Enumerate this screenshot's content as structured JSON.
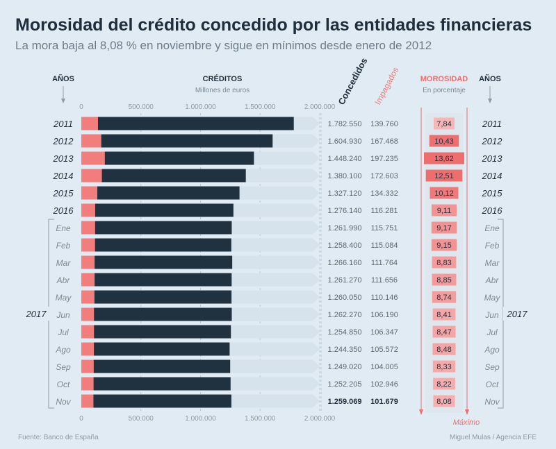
{
  "title": "Morosidad del crédito concedido por las entidades financieras",
  "subtitle": "La mora baja al 8,08 % en noviembre y sigue en mínimos desde enero de 2012",
  "headers": {
    "years_left": "AÑOS",
    "credits": "CRÉDITOS",
    "credits_unit": "Millones de euros",
    "granted": "Concedidos",
    "unpaid": "Impagados",
    "delinquency": "MOROSIDAD",
    "delinquency_unit": "En porcentaje",
    "years_right": "AÑOS"
  },
  "group_label": "2017",
  "max_label": "Máximo",
  "footer": {
    "source": "Fuente: Banco de España",
    "credit": "Miguel Mulas / Agencia EFE"
  },
  "colors": {
    "granted": "#20313f",
    "unpaid": "#f27d7d",
    "track": "#d6e2ec",
    "rate_light": "#f7b6b6",
    "rate_dark": "#ee6e6e"
  },
  "chart_data": {
    "type": "bar",
    "title": "Morosidad del crédito concedido por las entidades financieras",
    "xlabel": "Millones de euros",
    "xlim": [
      0,
      2000000
    ],
    "xticks": [
      "0",
      "500.000",
      "1.000.000",
      "1.500.000",
      "2.000.000"
    ],
    "rows": [
      {
        "label": "2011",
        "kind": "year",
        "granted": 1782550,
        "granted_label": "1.782.550",
        "unpaid": 139760,
        "unpaid_label": "139.760",
        "rate": 7.84,
        "rate_label": "7,84"
      },
      {
        "label": "2012",
        "kind": "year",
        "granted": 1604930,
        "granted_label": "1.604.930",
        "unpaid": 167468,
        "unpaid_label": "167.468",
        "rate": 10.43,
        "rate_label": "10,43"
      },
      {
        "label": "2013",
        "kind": "year",
        "granted": 1448240,
        "granted_label": "1.448.240",
        "unpaid": 197235,
        "unpaid_label": "197.235",
        "rate": 13.62,
        "rate_label": "13,62"
      },
      {
        "label": "2014",
        "kind": "year",
        "granted": 1380100,
        "granted_label": "1.380.100",
        "unpaid": 172603,
        "unpaid_label": "172.603",
        "rate": 12.51,
        "rate_label": "12,51"
      },
      {
        "label": "2015",
        "kind": "year",
        "granted": 1327120,
        "granted_label": "1.327.120",
        "unpaid": 134332,
        "unpaid_label": "134.332",
        "rate": 10.12,
        "rate_label": "10,12"
      },
      {
        "label": "2016",
        "kind": "year",
        "granted": 1276140,
        "granted_label": "1.276.140",
        "unpaid": 116281,
        "unpaid_label": "116.281",
        "rate": 9.11,
        "rate_label": "9,11"
      },
      {
        "label": "Ene",
        "kind": "month",
        "granted": 1261990,
        "granted_label": "1.261.990",
        "unpaid": 115751,
        "unpaid_label": "115.751",
        "rate": 9.17,
        "rate_label": "9,17"
      },
      {
        "label": "Feb",
        "kind": "month",
        "granted": 1258400,
        "granted_label": "1.258.400",
        "unpaid": 115084,
        "unpaid_label": "115.084",
        "rate": 9.15,
        "rate_label": "9,15"
      },
      {
        "label": "Mar",
        "kind": "month",
        "granted": 1266160,
        "granted_label": "1.266.160",
        "unpaid": 111764,
        "unpaid_label": "111.764",
        "rate": 8.83,
        "rate_label": "8,83"
      },
      {
        "label": "Abr",
        "kind": "month",
        "granted": 1261270,
        "granted_label": "1.261.270",
        "unpaid": 111656,
        "unpaid_label": "111.656",
        "rate": 8.85,
        "rate_label": "8,85"
      },
      {
        "label": "May",
        "kind": "month",
        "granted": 1260050,
        "granted_label": "1.260.050",
        "unpaid": 110146,
        "unpaid_label": "110.146",
        "rate": 8.74,
        "rate_label": "8,74"
      },
      {
        "label": "Jun",
        "kind": "month",
        "granted": 1262270,
        "granted_label": "1.262.270",
        "unpaid": 106190,
        "unpaid_label": "106.190",
        "rate": 8.41,
        "rate_label": "8,41"
      },
      {
        "label": "Jul",
        "kind": "month",
        "granted": 1254850,
        "granted_label": "1.254.850",
        "unpaid": 106347,
        "unpaid_label": "106.347",
        "rate": 8.47,
        "rate_label": "8,47"
      },
      {
        "label": "Ago",
        "kind": "month",
        "granted": 1244350,
        "granted_label": "1.244.350",
        "unpaid": 105572,
        "unpaid_label": "105.572",
        "rate": 8.48,
        "rate_label": "8,48"
      },
      {
        "label": "Sep",
        "kind": "month",
        "granted": 1249020,
        "granted_label": "1.249.020",
        "unpaid": 104005,
        "unpaid_label": "104.005",
        "rate": 8.33,
        "rate_label": "8,33"
      },
      {
        "label": "Oct",
        "kind": "month",
        "granted": 1252205,
        "granted_label": "1.252.205",
        "unpaid": 102946,
        "unpaid_label": "102.946",
        "rate": 8.22,
        "rate_label": "8,22"
      },
      {
        "label": "Nov",
        "kind": "month",
        "granted": 1259069,
        "granted_label": "1.259.069",
        "unpaid": 101679,
        "unpaid_label": "101.679",
        "rate": 8.08,
        "rate_label": "8,08",
        "highlight": true
      }
    ]
  }
}
